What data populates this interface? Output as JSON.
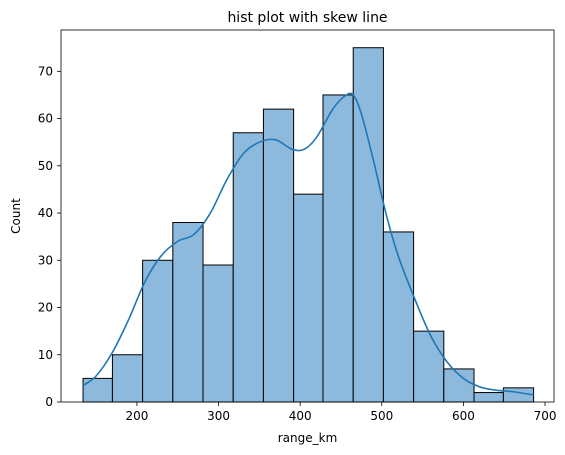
{
  "chart_data": {
    "type": "histogram",
    "title": "hist plot with skew line",
    "xlabel": "range_km",
    "ylabel": "Count",
    "xlim": [
      107,
      711
    ],
    "ylim": [
      0,
      78.75
    ],
    "xticks": [
      200,
      300,
      400,
      500,
      600,
      700
    ],
    "yticks": [
      0,
      10,
      20,
      30,
      40,
      50,
      60,
      70
    ],
    "bins": [
      {
        "start": 134,
        "end": 170,
        "count": 5
      },
      {
        "start": 170,
        "end": 207,
        "count": 10
      },
      {
        "start": 207,
        "end": 244,
        "count": 30
      },
      {
        "start": 244,
        "end": 281,
        "count": 38
      },
      {
        "start": 281,
        "end": 318,
        "count": 29
      },
      {
        "start": 318,
        "end": 355,
        "count": 57
      },
      {
        "start": 355,
        "end": 392,
        "count": 62
      },
      {
        "start": 392,
        "end": 428,
        "count": 44
      },
      {
        "start": 428,
        "end": 465,
        "count": 65
      },
      {
        "start": 465,
        "end": 502,
        "count": 75
      },
      {
        "start": 502,
        "end": 539,
        "count": 36
      },
      {
        "start": 539,
        "end": 576,
        "count": 15
      },
      {
        "start": 576,
        "end": 613,
        "count": 7
      },
      {
        "start": 613,
        "end": 649,
        "count": 2
      },
      {
        "start": 649,
        "end": 686,
        "count": 3
      }
    ],
    "kde": {
      "x": [
        134,
        150,
        170,
        190,
        210,
        230,
        250,
        270,
        290,
        310,
        330,
        350,
        370,
        390,
        405,
        420,
        440,
        455,
        465,
        475,
        490,
        505,
        520,
        540,
        560,
        580,
        600,
        620,
        640,
        660,
        686
      ],
      "y": [
        3.5,
        5.5,
        10.5,
        17.5,
        25.5,
        31,
        34,
        35.5,
        40,
        47,
        52.5,
        55,
        55.5,
        53.5,
        53.5,
        56,
        62,
        64.8,
        65,
        61,
        51,
        40,
        31,
        22,
        14,
        8.5,
        5,
        3.2,
        2.5,
        2.2,
        1.5
      ]
    },
    "colors": {
      "bar_fill": "#8dbadc",
      "bar_edge": "#000000",
      "kde_line": "#1f77b4"
    },
    "grid": false
  }
}
